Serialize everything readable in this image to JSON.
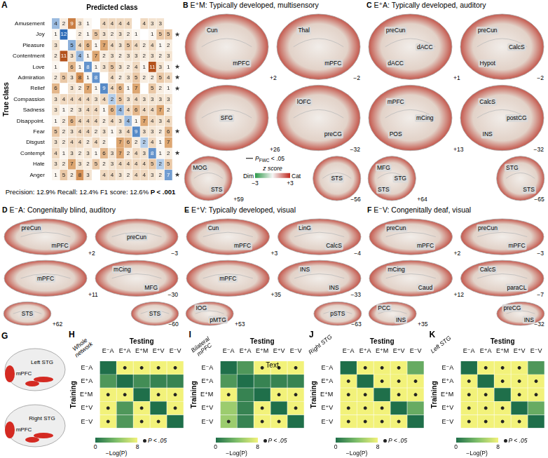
{
  "chart_data": [
    {
      "type": "heatmap",
      "letter": "A",
      "x_label": "Predicted class",
      "y_label": "True class",
      "tick_labels": "y",
      "data_labels": true,
      "y": [
        "Amusement",
        "Joy",
        "Pleasure",
        "Contentment",
        "Love",
        "Admiration",
        "Relief",
        "Compassion",
        "Sadness",
        "Disappoint.",
        "Fear",
        "Disgust",
        "Contempt",
        "Hate",
        "Anger"
      ],
      "cells": [
        [
          4,
          2,
          9,
          3,
          1,
          null,
          4,
          4,
          4,
          4,
          null,
          4,
          3,
          3,
          null
        ],
        [
          1,
          12,
          null,
          2,
          1,
          5,
          3,
          2,
          3,
          2,
          1,
          null,
          1,
          5,
          5
        ],
        [
          3,
          null,
          5,
          4,
          6,
          1,
          7,
          4,
          3,
          5,
          4,
          2,
          4,
          1,
          2
        ],
        [
          2,
          11,
          3,
          4,
          1,
          7,
          2,
          3,
          2,
          3,
          3,
          2,
          3,
          2,
          3
        ],
        [
          1,
          null,
          6,
          1,
          8,
          1,
          3,
          5,
          3,
          2,
          4,
          1,
          11,
          3,
          1
        ],
        [
          2,
          5,
          3,
          8,
          1,
          8,
          null,
          4,
          2,
          3,
          5,
          2,
          2,
          5,
          4
        ],
        [
          6,
          null,
          3,
          2,
          7,
          1,
          9,
          4,
          6,
          1,
          7,
          null,
          5,
          2,
          1
        ],
        [
          3,
          4,
          4,
          4,
          4,
          3,
          4,
          2,
          5,
          3,
          4,
          3,
          3,
          3,
          3
        ],
        [
          3,
          1,
          2,
          3,
          4,
          4,
          1,
          6,
          4,
          4,
          6,
          4,
          4,
          7,
          2
        ],
        [
          1,
          2,
          6,
          4,
          4,
          4,
          2,
          4,
          3,
          4,
          1,
          7,
          4,
          3,
          4
        ],
        [
          5,
          2,
          3,
          4,
          4,
          2,
          3,
          1,
          3,
          4,
          9,
          3,
          3,
          2,
          6
        ],
        [
          3,
          2,
          4,
          4,
          2,
          4,
          2,
          null,
          7,
          6,
          2,
          2,
          4,
          1,
          7
        ],
        [
          4,
          1,
          3,
          2,
          3,
          1,
          6,
          3,
          7,
          2,
          4,
          3,
          8,
          1,
          2
        ],
        [
          3,
          2,
          7,
          3,
          2,
          5,
          2,
          3,
          4,
          4,
          4,
          4,
          5,
          2,
          5
        ],
        [
          1,
          5,
          2,
          8,
          3,
          null,
          4,
          4,
          3,
          2,
          4,
          4,
          3,
          2,
          7
        ]
      ],
      "starred": [
        "Joy",
        "Love",
        "Admiration",
        "Relief",
        "Fear",
        "Contempt",
        "Anger"
      ],
      "star": "★",
      "metrics": "Precision: 12.9% Recall: 12.4% F1 score: 12.6%",
      "p_value": "P < .001"
    },
    {
      "type": "heatmap",
      "letter": "H",
      "region": "Whole network",
      "x_label": "Testing",
      "y_label": "Training",
      "x": [
        "E⁻A",
        "E⁺A",
        "E⁺M",
        "E⁺V",
        "E⁻V"
      ],
      "y": [
        "E⁻A",
        "E⁺A",
        "E⁺M",
        "E⁺V",
        "E⁻V"
      ],
      "cells": [
        [
          0,
          8,
          8,
          8,
          8
        ],
        [
          2,
          0,
          1.5,
          1,
          1
        ],
        [
          8,
          8,
          0,
          8,
          8
        ],
        [
          8,
          2,
          8,
          0,
          8
        ],
        [
          8,
          2,
          8,
          8,
          0
        ]
      ],
      "significant": [
        [
          false,
          true,
          true,
          true,
          true
        ],
        [
          false,
          false,
          false,
          false,
          false
        ],
        [
          true,
          true,
          false,
          true,
          true
        ],
        [
          true,
          false,
          true,
          false,
          true
        ],
        [
          true,
          false,
          true,
          true,
          false
        ]
      ],
      "colorbar": {
        "title": "−Log(P)",
        "range": [
          0,
          8
        ],
        "ticks": [
          0,
          8
        ]
      },
      "sig_label": "P < .05"
    },
    {
      "type": "heatmap",
      "letter": "I",
      "region": "Bilateral mPFC",
      "x_label": "Testing",
      "y_label": "Training",
      "annotation": "Text",
      "x": [
        "E⁻A",
        "E⁺A",
        "E⁺M",
        "E⁺V",
        "E⁻V"
      ],
      "y": [
        "E⁻A",
        "E⁺A",
        "E⁺M",
        "E⁺V",
        "E⁻V"
      ],
      "cells": [
        [
          0,
          2,
          8,
          8,
          8
        ],
        [
          2,
          0,
          1,
          1,
          1
        ],
        [
          8,
          1,
          0,
          8,
          8
        ],
        [
          5,
          1,
          8,
          0,
          8
        ],
        [
          5,
          1,
          8,
          8,
          0
        ]
      ],
      "significant": [
        [
          false,
          false,
          true,
          true,
          true
        ],
        [
          false,
          false,
          false,
          false,
          false
        ],
        [
          true,
          false,
          false,
          true,
          true
        ],
        [
          false,
          false,
          true,
          false,
          true
        ],
        [
          true,
          false,
          true,
          true,
          false
        ]
      ],
      "colorbar": {
        "title": "−Log(P)",
        "range": [
          0,
          8
        ],
        "ticks": [
          0,
          8
        ]
      },
      "sig_label": "P < .05"
    },
    {
      "type": "heatmap",
      "letter": "J",
      "region": "Right STG",
      "x_label": "Testing",
      "y_label": "Training",
      "x": [
        "E⁻A",
        "E⁺A",
        "E⁺M",
        "E⁺V",
        "E⁻V"
      ],
      "y": [
        "E⁻A",
        "E⁺A",
        "E⁺M",
        "E⁺V",
        "E⁻V"
      ],
      "cells": [
        [
          0,
          8,
          8,
          8,
          3
        ],
        [
          8,
          0,
          8,
          8,
          8
        ],
        [
          8,
          8,
          0,
          8,
          8
        ],
        [
          8,
          8,
          8,
          0,
          3
        ],
        [
          8,
          8,
          8,
          8,
          0
        ]
      ],
      "significant": [
        [
          false,
          true,
          true,
          true,
          false
        ],
        [
          true,
          false,
          true,
          true,
          true
        ],
        [
          true,
          true,
          false,
          true,
          true
        ],
        [
          true,
          true,
          true,
          false,
          false
        ],
        [
          true,
          true,
          true,
          true,
          false
        ]
      ],
      "colorbar": {
        "title": "−Log(P)",
        "range": [
          0,
          8
        ],
        "ticks": [
          0,
          8
        ]
      },
      "sig_label": "P < .05"
    },
    {
      "type": "heatmap",
      "letter": "K",
      "region": "Left STG",
      "x_label": "Testing",
      "y_label": "Training",
      "x": [
        "E⁻A",
        "E⁺A",
        "E⁺M",
        "E⁺V",
        "E⁻V"
      ],
      "y": [
        "E⁻A",
        "E⁺A",
        "E⁺M",
        "E⁺V",
        "E⁻V"
      ],
      "cells": [
        [
          0,
          8,
          8,
          8,
          2
        ],
        [
          8,
          0,
          8,
          8,
          8
        ],
        [
          8,
          8,
          0,
          8,
          8
        ],
        [
          8,
          8,
          8,
          0,
          3
        ],
        [
          8,
          8,
          8,
          8,
          0
        ]
      ],
      "significant": [
        [
          false,
          true,
          true,
          true,
          false
        ],
        [
          true,
          false,
          true,
          true,
          true
        ],
        [
          true,
          true,
          false,
          true,
          true
        ],
        [
          true,
          true,
          true,
          false,
          false
        ],
        [
          true,
          true,
          true,
          true,
          false
        ]
      ],
      "colorbar": {
        "title": "−Log(P)",
        "range": [
          0,
          8
        ],
        "ticks": [
          0,
          8
        ]
      },
      "sig_label": "P < .05"
    }
  ],
  "brain_panels": [
    {
      "letter": "B",
      "title": "E⁺M: Typically developed, multisensory",
      "labels": [
        "Cun",
        "mPFC",
        "Thal",
        "mPFC",
        "SFG",
        "lOFC",
        "preCG",
        "MOG",
        "STS",
        "STS"
      ],
      "coords": [
        "+2",
        "−2",
        "+26",
        "−32",
        "+59",
        "−56"
      ]
    },
    {
      "letter": "C",
      "title": "E⁺A: Typically developed, auditory",
      "labels": [
        "preCun",
        "dACC",
        "dACC",
        "preCun",
        "CalcS",
        "Hypot",
        "mPFC",
        "mCing",
        "POS",
        "CalcS",
        "postCG",
        "INS",
        "MFG",
        "STG",
        "STS",
        "STG",
        "STS"
      ],
      "coords": [
        "+1",
        "−2",
        "+13",
        "−32",
        "+64",
        "−65"
      ]
    },
    {
      "letter": "D",
      "title": "E⁻A: Congenitally blind, auditory",
      "labels": [
        "preCun",
        "mPFC",
        "preCun",
        "mPFC",
        "mCing",
        "MFG",
        "STS",
        "STS"
      ],
      "coords": [
        "+2",
        "−3",
        "+11",
        "−30",
        "+62",
        "−60"
      ]
    },
    {
      "letter": "E",
      "title": "E⁺V: Typically developed, visual",
      "labels": [
        "Cun",
        "mPFC",
        "LinG",
        "CalcS",
        "mPFC",
        "INS",
        "INS",
        "IOG",
        "pMTG",
        "pSTS"
      ],
      "coords": [
        "+3",
        "−4",
        "+35",
        "−33",
        "+53",
        "−63"
      ]
    },
    {
      "letter": "F",
      "title": "E⁻V: Congenitally deaf, visual",
      "labels": [
        "preCun",
        "mPFC",
        "preCun",
        "mPFC",
        "mCing",
        "Caud",
        "CalcS",
        "paraCL",
        "PCC",
        "INS",
        "preCG",
        "INS"
      ],
      "coords": [
        "+2",
        "−3",
        "+12",
        "−7",
        "+35",
        "−32"
      ]
    }
  ],
  "brain_legend": {
    "symbol": "P",
    "subscript": "FWC",
    "text": " < .05",
    "colorbar": {
      "title": "z score",
      "low_label": "Dim",
      "high_label": "Cat",
      "range": [
        -3,
        3
      ],
      "ticks": [
        {
          "value": -3,
          "label": "−3"
        },
        {
          "value": 3,
          "label": "+3"
        }
      ]
    }
  },
  "panel_G": {
    "letter": "G",
    "labels": [
      "Left STG",
      "mPFC",
      "Right STG",
      "mPFC"
    ]
  }
}
